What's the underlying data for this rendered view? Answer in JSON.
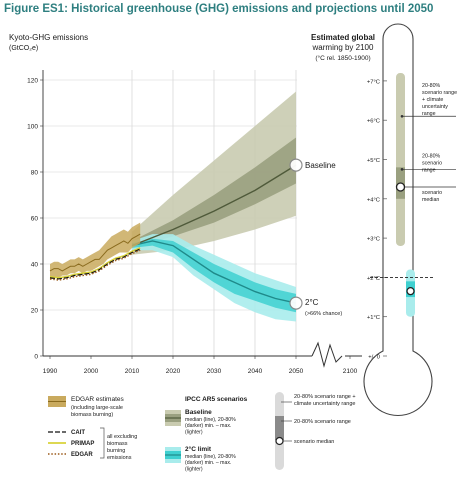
{
  "figure_title": "Figure ES1: Historical greenhouse (GHG) emissions and projections until 2050",
  "colors": {
    "edgar_band": "#c9aa5e",
    "edgar_line": "#8a6b1e",
    "cait": "#111111",
    "primap": "#d8d23a",
    "edgar_hist": "#9b5a1a",
    "baseline_light": "#c9cbb0",
    "baseline_dark": "#9aa080",
    "baseline_line": "#4f5a3a",
    "limit_light": "#a9ecec",
    "limit_dark": "#3fd0d0",
    "limit_line": "#1f8a8a",
    "thermo_outline": "#444444",
    "thermo_bar": "#c9cbb0",
    "thermo_bar_dark": "#9aa080",
    "thermo_cyan": "#a9ecec",
    "thermo_cyan_dark": "#3fd0d0",
    "ref_line": "#222222"
  },
  "chart_data": [
    {
      "type": "line",
      "title": "",
      "ylabel": "Kyoto-GHG emissions",
      "ylabel_unit": "(GtCO₂e)",
      "xlim": [
        1987,
        2105
      ],
      "ylim": [
        0,
        125
      ],
      "x_ticks": [
        1990,
        2000,
        2010,
        2020,
        2030,
        2040,
        2050,
        2100
      ],
      "y_ticks": [
        0,
        20,
        40,
        60,
        80,
        100,
        120
      ],
      "grid": true,
      "series": [
        {
          "name": "EDGAR estimates",
          "kind": "band",
          "x": [
            1990,
            1991,
            1992,
            1993,
            1994,
            1995,
            1996,
            1997,
            1998,
            1999,
            2000,
            2001,
            2002,
            2003,
            2004,
            2005,
            2006,
            2007,
            2008,
            2009,
            2010,
            2011,
            2012
          ],
          "low": [
            33,
            34,
            34,
            35,
            35,
            36,
            36,
            37,
            36,
            37,
            37,
            38,
            39,
            40,
            42,
            43,
            44,
            45,
            45,
            45,
            47,
            48,
            49
          ],
          "high": [
            40,
            41,
            41,
            40,
            41,
            42,
            42,
            43,
            42,
            43,
            44,
            45,
            46,
            48,
            50,
            52,
            53,
            54,
            55,
            54,
            56,
            57,
            58
          ],
          "mid": [
            37,
            38,
            38,
            37,
            38,
            39,
            39,
            40,
            39,
            40,
            41,
            42,
            42,
            44,
            46,
            47,
            48,
            49,
            50,
            49,
            51,
            52,
            53
          ]
        },
        {
          "name": "CAIT",
          "kind": "line",
          "x": [
            1990,
            1992,
            1994,
            1996,
            1998,
            2000,
            2002,
            2004,
            2006,
            2008,
            2010,
            2012
          ],
          "y": [
            34,
            33.5,
            34,
            35,
            35.5,
            36,
            37.5,
            40,
            42,
            43,
            45,
            46.5
          ]
        },
        {
          "name": "PRIMAP",
          "kind": "line",
          "x": [
            1990,
            1992,
            1994,
            1996,
            1998,
            2000,
            2002,
            2004,
            2006,
            2008,
            2010,
            2012
          ],
          "y": [
            34.5,
            34,
            34.5,
            35.5,
            36,
            36.5,
            38,
            40.5,
            42.5,
            43.5,
            45.5,
            47
          ]
        },
        {
          "name": "EDGAR",
          "kind": "line",
          "x": [
            1990,
            1992,
            1994,
            1996,
            1998,
            2000,
            2002,
            2004,
            2006,
            2008,
            2010,
            2012
          ],
          "y": [
            33.5,
            33,
            33.5,
            34.5,
            35,
            35.5,
            37,
            39.5,
            41.5,
            42.5,
            44.5,
            46
          ]
        },
        {
          "name": "Baseline",
          "kind": "scenario",
          "x": [
            2010,
            2020,
            2030,
            2040,
            2050
          ],
          "median": [
            48,
            55,
            63,
            72,
            83
          ],
          "p20": [
            47,
            52,
            58,
            66,
            75
          ],
          "p80": [
            50,
            59,
            70,
            82,
            95
          ],
          "min": [
            44,
            46,
            50,
            55,
            61
          ],
          "max": [
            54,
            70,
            85,
            100,
            115
          ]
        },
        {
          "name": "2°C limit",
          "kind": "scenario",
          "x": [
            2010,
            2015,
            2020,
            2025,
            2030,
            2035,
            2040,
            2045,
            2050
          ],
          "median": [
            48,
            50,
            48,
            42,
            36,
            32,
            28,
            25,
            23
          ],
          "p20": [
            47,
            48,
            45,
            38,
            32,
            27,
            24,
            21,
            19
          ],
          "p80": [
            49,
            51,
            50,
            45,
            40,
            36,
            32,
            29,
            27
          ],
          "min": [
            46,
            46,
            43,
            35,
            29,
            23,
            19,
            16,
            15
          ],
          "max": [
            50,
            53,
            53,
            48,
            44,
            40,
            36,
            33,
            30
          ]
        }
      ],
      "annotations": {
        "baseline_label": "Baseline",
        "limit_label": "2°C",
        "limit_sub": "(>66% chance)"
      }
    },
    {
      "type": "bar",
      "title": "Estimated global warming by 2100",
      "subtitle": "(°C rel. 1850-1900)",
      "ylim": [
        0,
        8
      ],
      "ticks": [
        "+/- 0",
        "+1°C",
        "+2°C",
        "+3°C",
        "+4°C",
        "+5°C",
        "+6°C",
        "+7°C"
      ],
      "tick_values": [
        0,
        1,
        2,
        3,
        4,
        5,
        6,
        7
      ],
      "baseline": {
        "range_low": 2.8,
        "range_high": 7.2,
        "p20": 4.0,
        "p80": 4.8,
        "median": 4.3
      },
      "limit": {
        "range_low": 1.0,
        "range_high": 2.2,
        "p20": 1.5,
        "p80": 1.9,
        "median": 1.65
      },
      "reference": 2.0,
      "callouts": [
        "20-80% scenario range + climate uncertainty range",
        "20-80% scenario range",
        "scenario median"
      ]
    }
  ],
  "legend": {
    "edgar_estimates": "EDGAR estimates",
    "edgar_estimates_sub": "(including large-scale biomass burning)",
    "cait": "CAIT",
    "primap": "PRIMAP",
    "edgar": "EDGAR",
    "excluding_note": "all excluding biomass burning emissions",
    "ipcc_title": "IPCC AR5 scenarios",
    "baseline": "Baseline",
    "baseline_sub": "median (line), 20-80% (darker) min. – max. (lighter)",
    "limit": "2°C limit",
    "limit_sub": "median (line), 20-80% (darker) min. – max. (lighter)",
    "range_uncert": "20-80% scenario range + climate uncertainty range",
    "range": "20-80% scenario range",
    "median": "scenario median"
  }
}
